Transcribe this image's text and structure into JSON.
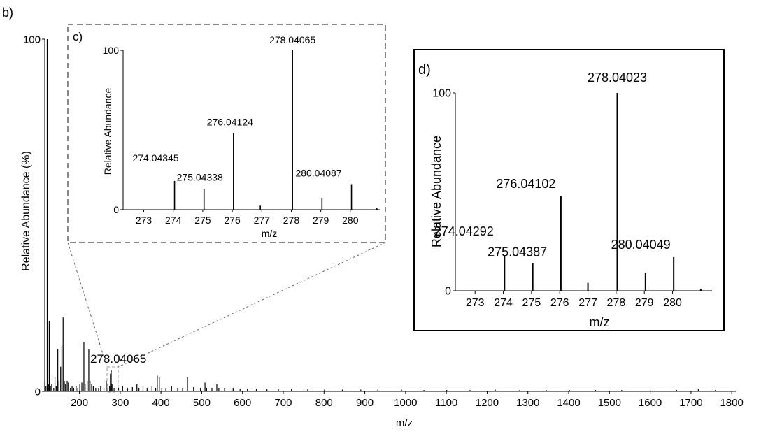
{
  "header": {
    "title_fragment": "(-)"
  },
  "chart_data": [
    {
      "id": "main",
      "panel_label": "b)",
      "type": "stem",
      "xlabel": "m/z",
      "ylabel": "Relative Abundance (%)",
      "xlim": [
        115,
        1810
      ],
      "ylim": [
        0,
        100
      ],
      "xticks": [
        200,
        300,
        400,
        500,
        600,
        700,
        800,
        900,
        1000,
        1100,
        1200,
        1300,
        1400,
        1500,
        1600,
        1700,
        1800
      ],
      "yticks": [
        0,
        100
      ],
      "annotations": [
        {
          "text": "278.04065",
          "x": 278.04,
          "y": 8
        }
      ],
      "zoom_box_x": [
        265,
        290
      ],
      "peaks": [
        [
          115,
          3
        ],
        [
          118,
          1.5
        ],
        [
          121,
          100
        ],
        [
          124,
          2
        ],
        [
          126,
          20
        ],
        [
          129,
          1.5
        ],
        [
          132,
          2
        ],
        [
          137,
          1
        ],
        [
          140,
          4
        ],
        [
          143,
          1.5
        ],
        [
          147,
          12
        ],
        [
          150,
          3
        ],
        [
          154,
          7
        ],
        [
          157,
          13
        ],
        [
          160,
          21
        ],
        [
          163,
          3
        ],
        [
          166,
          2
        ],
        [
          170,
          3
        ],
        [
          173,
          2.5
        ],
        [
          178,
          1
        ],
        [
          182,
          1.5
        ],
        [
          186,
          1
        ],
        [
          192,
          1.5
        ],
        [
          196,
          1
        ],
        [
          201,
          2
        ],
        [
          206,
          2.5
        ],
        [
          211,
          14
        ],
        [
          214,
          2
        ],
        [
          219,
          3
        ],
        [
          223,
          12
        ],
        [
          226,
          3
        ],
        [
          230,
          2
        ],
        [
          234,
          1.5
        ],
        [
          240,
          1
        ],
        [
          247,
          1
        ],
        [
          252,
          1.5
        ],
        [
          260,
          1
        ],
        [
          266,
          3
        ],
        [
          270,
          2
        ],
        [
          274,
          1.5
        ],
        [
          276,
          5
        ],
        [
          278,
          6
        ],
        [
          280,
          2
        ],
        [
          285,
          1
        ],
        [
          296,
          1
        ],
        [
          306,
          1.5
        ],
        [
          318,
          1
        ],
        [
          330,
          1.2
        ],
        [
          341,
          2
        ],
        [
          346,
          1
        ],
        [
          356,
          1.5
        ],
        [
          366,
          1
        ],
        [
          378,
          1.5
        ],
        [
          387,
          1
        ],
        [
          391,
          4.5
        ],
        [
          396,
          4
        ],
        [
          402,
          1
        ],
        [
          412,
          1
        ],
        [
          426,
          1.5
        ],
        [
          441,
          1
        ],
        [
          453,
          1
        ],
        [
          465,
          4
        ],
        [
          480,
          1.2
        ],
        [
          497,
          1
        ],
        [
          508,
          2.5
        ],
        [
          512,
          1
        ],
        [
          525,
          1
        ],
        [
          537,
          2
        ],
        [
          542,
          1
        ],
        [
          556,
          1
        ],
        [
          577,
          1
        ],
        [
          594,
          0.8
        ],
        [
          612,
          0.8
        ],
        [
          634,
          0.8
        ],
        [
          660,
          0.6
        ],
        [
          688,
          0.6
        ],
        [
          720,
          0.6
        ],
        [
          760,
          0.6
        ],
        [
          801,
          0.5
        ],
        [
          845,
          0.5
        ],
        [
          890,
          0.5
        ],
        [
          932,
          0.5
        ],
        [
          990,
          0.5
        ],
        [
          1045,
          0.4
        ],
        [
          1101,
          0.4
        ],
        [
          1158,
          0.4
        ],
        [
          1220,
          0.5
        ],
        [
          1280,
          0.4
        ],
        [
          1345,
          0.4
        ],
        [
          1402,
          0.4
        ],
        [
          1466,
          0.4
        ],
        [
          1530,
          0.4
        ],
        [
          1600,
          0.4
        ],
        [
          1665,
          0.4
        ],
        [
          1718,
          0.6
        ],
        [
          1760,
          0.4
        ]
      ]
    },
    {
      "id": "inset-c",
      "panel_label": "c)",
      "type": "stem",
      "xlabel": "m/z",
      "ylabel": "Relative Abundance",
      "xlim": [
        272.3,
        281.0
      ],
      "ylim": [
        0,
        100
      ],
      "xticks": [
        273,
        274,
        275,
        276,
        277,
        278,
        279,
        280
      ],
      "yticks": [
        0,
        100
      ],
      "peaks": [
        [
          274.04345,
          18
        ],
        [
          275.04338,
          13
        ],
        [
          276.04124,
          48
        ],
        [
          276.95,
          2.5
        ],
        [
          278.04065,
          100
        ],
        [
          279.04,
          7
        ],
        [
          280.04087,
          16
        ],
        [
          280.9,
          1
        ]
      ],
      "annotations": [
        {
          "text": "274.04345",
          "x": 274.04345,
          "y": 18
        },
        {
          "text": "275.04338",
          "x": 275.04338,
          "y": 13
        },
        {
          "text": "276.04124",
          "x": 276.04124,
          "y": 48
        },
        {
          "text": "278.04065",
          "x": 278.04065,
          "y": 100
        },
        {
          "text": "280.04087",
          "x": 280.04087,
          "y": 16
        }
      ]
    },
    {
      "id": "inset-d",
      "panel_label": "d)",
      "type": "stem",
      "xlabel": "m/z",
      "ylabel": "Relative Abundance",
      "xlim": [
        272.3,
        281.4
      ],
      "ylim": [
        0,
        100
      ],
      "xticks": [
        273,
        274,
        275,
        276,
        277,
        278,
        279,
        280
      ],
      "yticks": [
        0,
        100
      ],
      "peaks": [
        [
          274.04292,
          18
        ],
        [
          275.04387,
          14
        ],
        [
          276.04102,
          48
        ],
        [
          277.0,
          4
        ],
        [
          278.04023,
          100
        ],
        [
          279.04,
          9
        ],
        [
          280.04049,
          17
        ],
        [
          281.0,
          1
        ]
      ],
      "annotations": [
        {
          "text": "274.04292",
          "x": 274.04292,
          "y": 18
        },
        {
          "text": "275.04387",
          "x": 275.04387,
          "y": 14
        },
        {
          "text": "276.04102",
          "x": 276.04102,
          "y": 48
        },
        {
          "text": "278.04023",
          "x": 278.04023,
          "y": 100
        },
        {
          "text": "280.04049",
          "x": 280.04049,
          "y": 17
        }
      ]
    }
  ]
}
